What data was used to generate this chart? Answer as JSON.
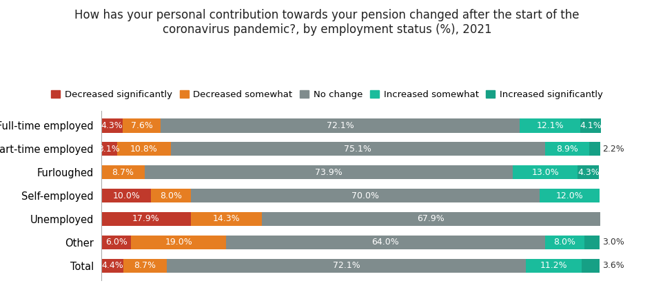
{
  "title": "How has your personal contribution towards your pension changed after the start of the\ncoronavirus pandemic?, by employment status (%), 2021",
  "categories": [
    "Full-time employed",
    "Part-time employed",
    "Furloughed",
    "Self-employed",
    "Unemployed",
    "Other",
    "Total"
  ],
  "series": [
    {
      "label": "Decreased significantly",
      "color": "#c0392b",
      "values": [
        4.3,
        3.1,
        0.0,
        10.0,
        17.9,
        6.0,
        4.4
      ]
    },
    {
      "label": "Decreased somewhat",
      "color": "#e67e22",
      "values": [
        7.6,
        10.8,
        8.7,
        8.0,
        14.3,
        19.0,
        8.7
      ]
    },
    {
      "label": "No change",
      "color": "#7f8c8d",
      "values": [
        72.1,
        75.1,
        73.9,
        70.0,
        67.9,
        64.0,
        72.1
      ]
    },
    {
      "label": "Increased somewhat",
      "color": "#1abc9c",
      "values": [
        12.1,
        8.9,
        13.0,
        12.0,
        0.0,
        8.0,
        11.2
      ]
    },
    {
      "label": "Increased significantly",
      "color": "#16a085",
      "values": [
        4.1,
        2.2,
        4.3,
        0.0,
        0.0,
        3.0,
        3.6
      ]
    }
  ],
  "bar_labels": [
    [
      "4.3%",
      "7.6%",
      "72.1%",
      "12.1%",
      "4.1%"
    ],
    [
      "3.1%",
      "10.8%",
      "75.1%",
      "8.9%",
      "2.2%"
    ],
    [
      "",
      "8.7%",
      "73.9%",
      "13.0%",
      "4.3%"
    ],
    [
      "10.0%",
      "8.0%",
      "70.0%",
      "12.0%",
      ""
    ],
    [
      "17.9%",
      "14.3%",
      "67.9%",
      "",
      ""
    ],
    [
      "6.0%",
      "19.0%",
      "64.0%",
      "8.0%",
      "3.0%"
    ],
    [
      "4.4%",
      "8.7%",
      "72.1%",
      "11.2%",
      "3.6%"
    ]
  ],
  "outside_labels": [
    [
      false,
      false,
      false,
      false,
      false
    ],
    [
      false,
      false,
      false,
      false,
      true
    ],
    [
      false,
      false,
      false,
      false,
      false
    ],
    [
      false,
      false,
      false,
      false,
      false
    ],
    [
      false,
      false,
      false,
      false,
      false
    ],
    [
      false,
      false,
      false,
      false,
      true
    ],
    [
      false,
      false,
      false,
      false,
      true
    ]
  ],
  "text_color_inside": "#ffffff",
  "text_color_outside": "#333333",
  "background_color": "#ffffff",
  "legend_fontsize": 9.5,
  "title_fontsize": 12,
  "bar_label_fontsize": 9
}
